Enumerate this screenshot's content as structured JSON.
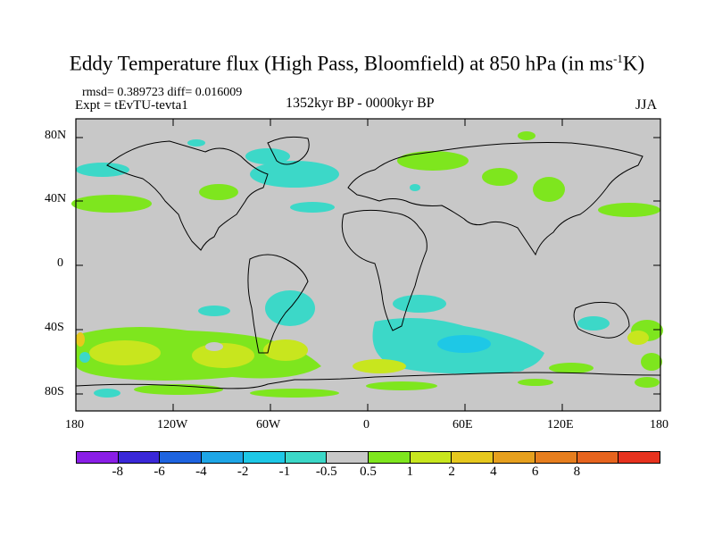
{
  "header": {
    "title": "Eddy Temperature flux (High Pass, Bloomfield) at 850 hPa (in ms",
    "title_sup": "-1",
    "title_tail": "K)",
    "stats": "rmsd= 0.389723  diff= 0.016009",
    "expt": "Expt = tEvTU-tevta1",
    "period": "1352kyr BP - 0000kyr BP",
    "season": "JJA"
  },
  "axes": {
    "lat_labels": [
      "80N",
      "40N",
      "0",
      "40S",
      "80S"
    ],
    "lon_labels": [
      "180",
      "120W",
      "60W",
      "0",
      "60E",
      "120E",
      "180"
    ]
  },
  "colorbar": {
    "colors": [
      "#8a1ee6",
      "#3a28d8",
      "#1e64e0",
      "#1ea6e6",
      "#1ec8e6",
      "#3cd8c8",
      "#c8c8c8",
      "#7ee61e",
      "#c8e61e",
      "#e6c81e",
      "#e6a01e",
      "#e67e1e",
      "#e6641e",
      "#e6321e"
    ],
    "labels": [
      "-8",
      "-6",
      "-4",
      "-2",
      "-1",
      "-0.5",
      "0.5",
      "1",
      "2",
      "4",
      "6",
      "8"
    ]
  },
  "map": {
    "background_color": "#c8c8c8",
    "coastline_color": "#000000"
  }
}
